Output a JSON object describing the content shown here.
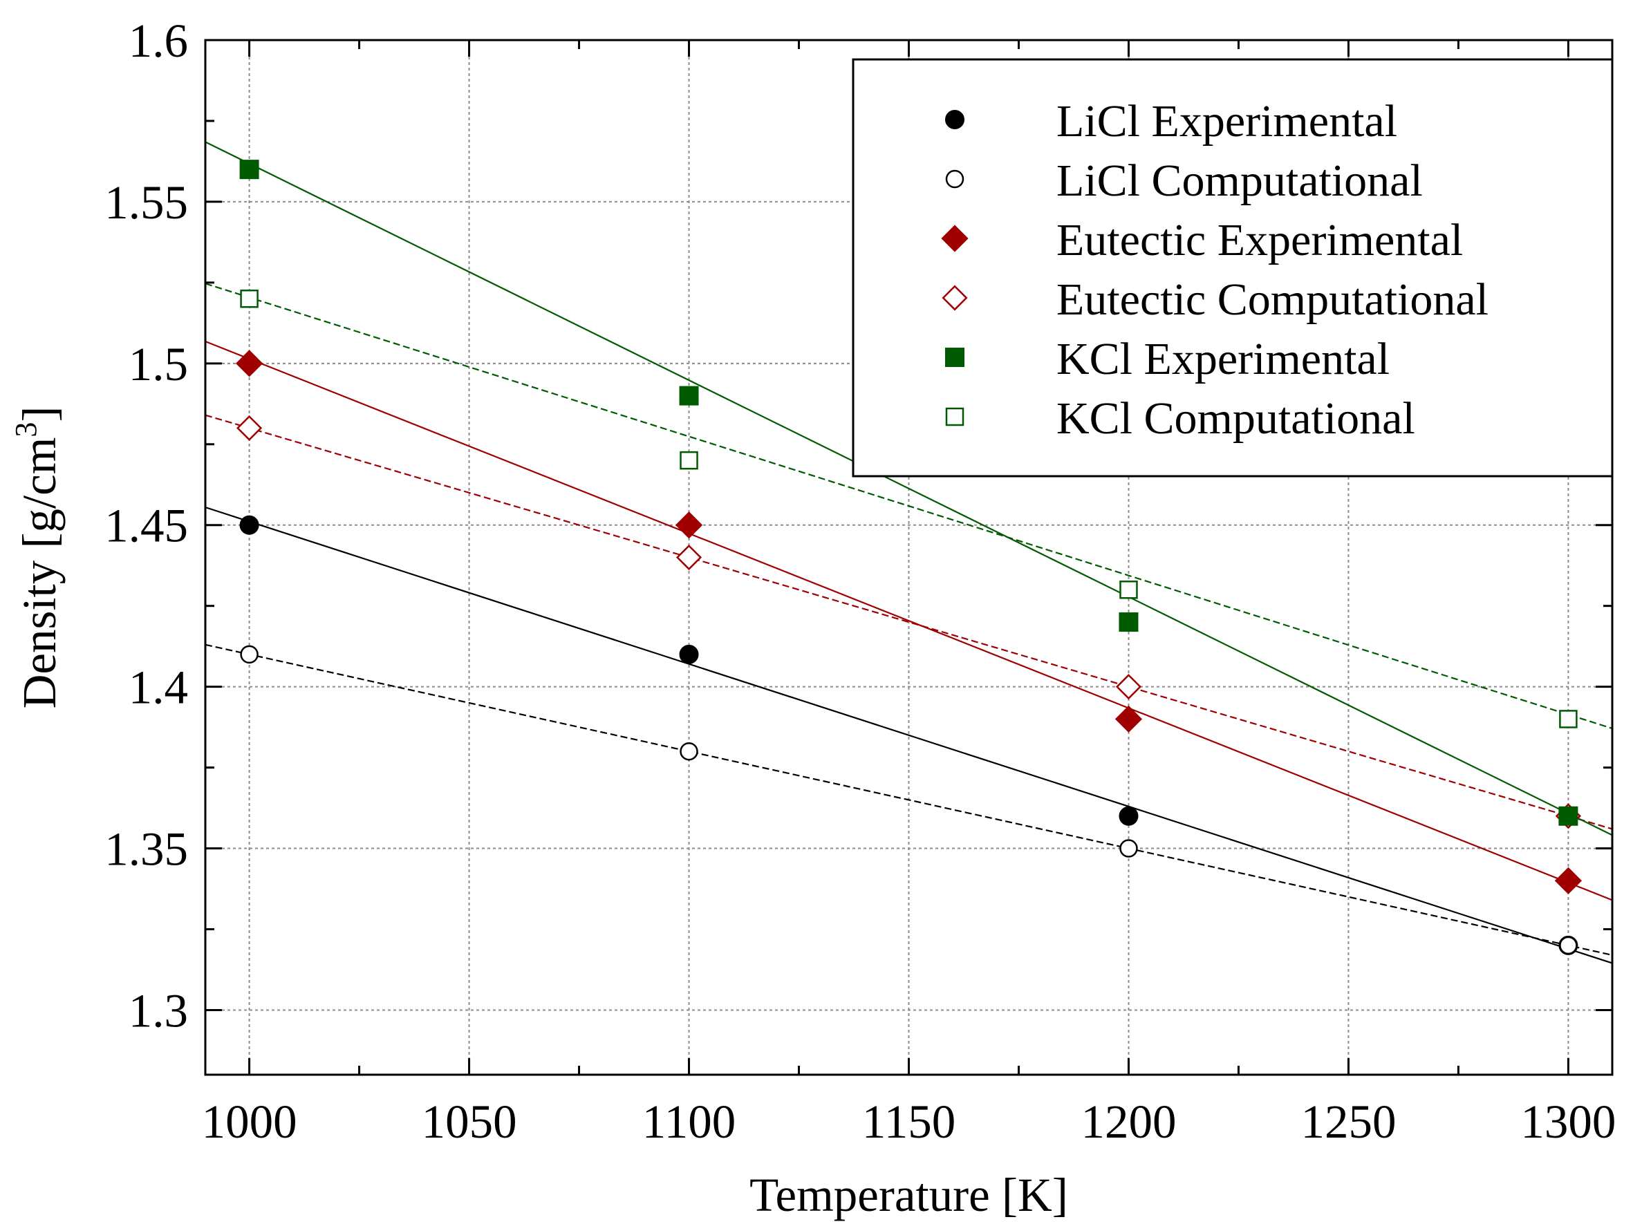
{
  "chart_data": {
    "type": "scatter",
    "xlabel": "Temperature [K]",
    "ylabel": "Density [g/cm",
    "ylabel_superscript": "3",
    "ylabel_suffix": "]",
    "xlim": [
      990,
      1310
    ],
    "ylim": [
      1.28,
      1.6
    ],
    "x_ticks": [
      1000,
      1050,
      1100,
      1150,
      1200,
      1250,
      1300
    ],
    "x_tick_labels": [
      "1000",
      "1050",
      "1100",
      "1150",
      "1200",
      "1250",
      "1300"
    ],
    "x_minor_ticks": [
      1025,
      1075,
      1125,
      1175,
      1225,
      1275
    ],
    "y_ticks": [
      1.3,
      1.35,
      1.4,
      1.45,
      1.5,
      1.55,
      1.6
    ],
    "y_tick_labels": [
      "1.3",
      "1.35",
      "1.4",
      "1.45",
      "1.5",
      "1.55",
      "1.6"
    ],
    "y_minor_ticks": [
      1.325,
      1.375,
      1.425,
      1.475,
      1.525,
      1.575
    ],
    "grid": true,
    "legend_position": "top-right",
    "series": [
      {
        "name": "LiCl Experimental",
        "color": "#000000",
        "marker": "circle",
        "filled": true,
        "line": "solid",
        "x": [
          1000,
          1100,
          1200,
          1300
        ],
        "y": [
          1.45,
          1.41,
          1.36,
          1.32
        ],
        "fit": {
          "x": [
            990,
            1310
          ],
          "y": [
            1.4555,
            1.3145
          ]
        }
      },
      {
        "name": "LiCl Computational",
        "color": "#000000",
        "marker": "circle",
        "filled": false,
        "line": "dashed",
        "x": [
          1000,
          1100,
          1200,
          1300
        ],
        "y": [
          1.41,
          1.38,
          1.35,
          1.32
        ],
        "fit": {
          "x": [
            990,
            1310
          ],
          "y": [
            1.413,
            1.317
          ]
        }
      },
      {
        "name": "Eutectic Experimental",
        "color": "#a00000",
        "marker": "diamond",
        "filled": true,
        "line": "solid",
        "x": [
          1000,
          1100,
          1200,
          1300
        ],
        "y": [
          1.5,
          1.45,
          1.39,
          1.34
        ],
        "fit": {
          "x": [
            990,
            1310
          ],
          "y": [
            1.5068,
            1.334
          ]
        }
      },
      {
        "name": "Eutectic Computational",
        "color": "#a00000",
        "marker": "diamond",
        "filled": false,
        "line": "dashed",
        "x": [
          1000,
          1100,
          1200,
          1300
        ],
        "y": [
          1.48,
          1.44,
          1.4,
          1.36
        ],
        "fit": {
          "x": [
            990,
            1310
          ],
          "y": [
            1.484,
            1.356
          ]
        }
      },
      {
        "name": "KCl Experimental",
        "color": "#005a00",
        "marker": "square",
        "filled": true,
        "line": "solid",
        "x": [
          1000,
          1100,
          1200,
          1300
        ],
        "y": [
          1.56,
          1.49,
          1.42,
          1.36
        ],
        "fit": {
          "x": [
            990,
            1310
          ],
          "y": [
            1.5685,
            1.3541
          ]
        }
      },
      {
        "name": "KCl Computational",
        "color": "#005a00",
        "marker": "square",
        "filled": false,
        "line": "dashed",
        "x": [
          1000,
          1100,
          1200,
          1300
        ],
        "y": [
          1.52,
          1.47,
          1.43,
          1.39
        ],
        "fit": {
          "x": [
            990,
            1310
          ],
          "y": [
            1.5247,
            1.3871
          ]
        }
      }
    ]
  }
}
